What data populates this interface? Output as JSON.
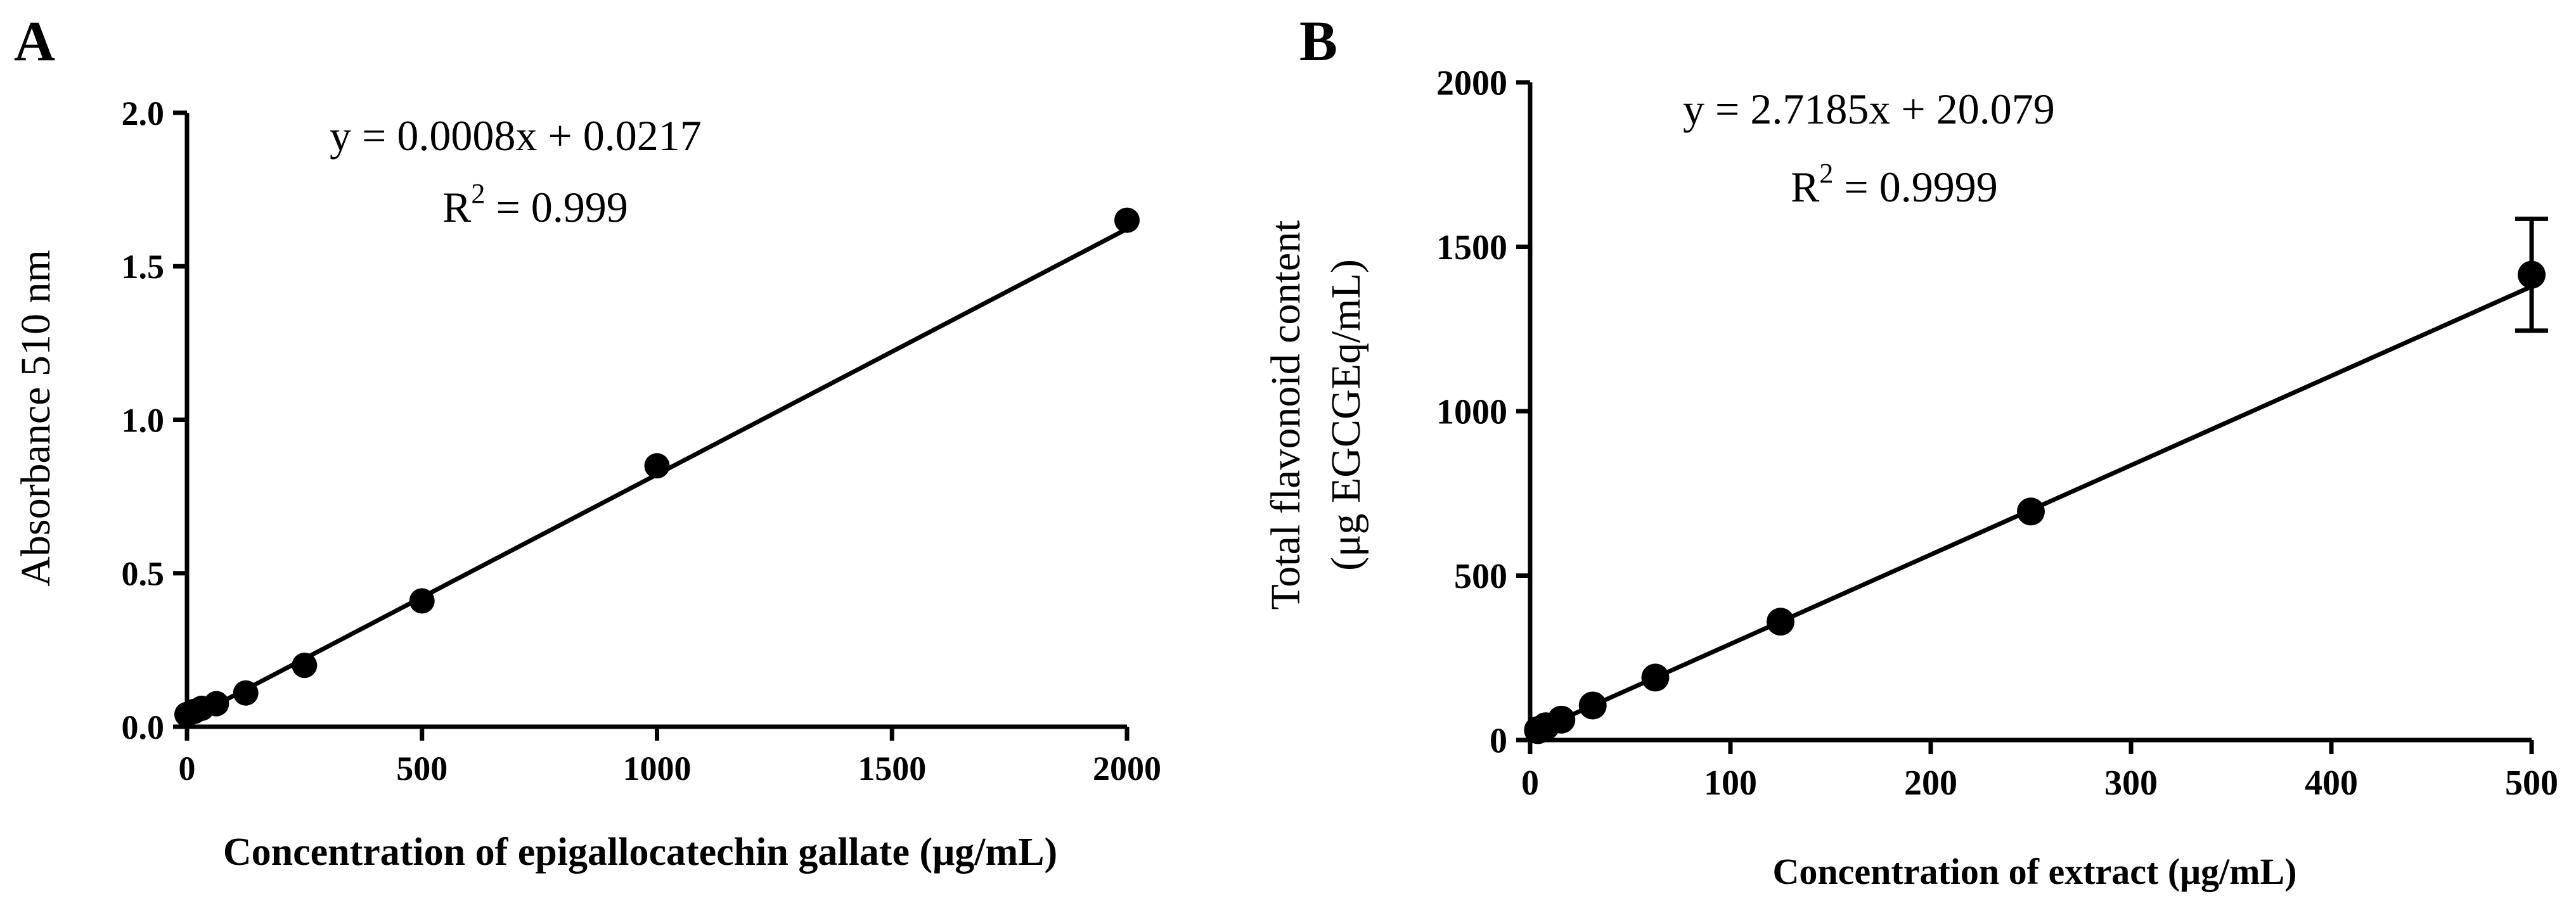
{
  "chart_data": [
    {
      "panel_label": "A",
      "type": "scatter",
      "fit_line": true,
      "xlabel": "Concentration of epigallocatechin gallate (μg/mL)",
      "ylabel": "Absorbance 510 nm",
      "xlim": [
        0,
        2000
      ],
      "ylim": [
        0,
        2.0
      ],
      "xticks": [
        0,
        500,
        1000,
        1500,
        2000
      ],
      "xtick_labels": [
        "0",
        "500",
        "1000",
        "1500",
        "2000"
      ],
      "yticks": [
        0,
        0.5,
        1.0,
        1.5,
        2.0
      ],
      "ytick_labels": [
        "0.0",
        "0.5",
        "1.0",
        "1.5",
        "2.0"
      ],
      "equation": "y = 0.0008x + 0.0217",
      "r2_label": "R",
      "r2_exp": "2",
      "r2_value": " = 0.999",
      "fit": {
        "slope": 0.0008,
        "intercept": 0.0217,
        "x_start": 0,
        "x_end": 2000
      },
      "grid": false,
      "x": [
        0,
        15.6,
        31.25,
        62.5,
        125,
        250,
        500,
        1000,
        2000
      ],
      "y": [
        0.04,
        0.05,
        0.06,
        0.075,
        0.11,
        0.2,
        0.41,
        0.85,
        1.65
      ],
      "err": [
        0,
        0,
        0,
        0,
        0,
        0,
        0,
        0,
        0
      ]
    },
    {
      "panel_label": "B",
      "type": "scatter",
      "fit_line": true,
      "xlabel": "Concentration of extract (μg/mL)",
      "ylabel_line1": "Total flavonoid content",
      "ylabel_line2": "(μg EGCGEq/mL)",
      "xlim": [
        0,
        500
      ],
      "ylim": [
        0,
        2000
      ],
      "xticks": [
        0,
        100,
        200,
        300,
        400,
        500
      ],
      "xtick_labels": [
        "0",
        "100",
        "200",
        "300",
        "400",
        "500"
      ],
      "yticks": [
        0,
        500,
        1000,
        1500,
        2000
      ],
      "ytick_labels": [
        "0",
        "500",
        "1000",
        "1500",
        "2000"
      ],
      "equation": "y = 2.7185x + 20.079",
      "r2_label": "R",
      "r2_exp": "2",
      "r2_value": " = 0.9999",
      "fit": {
        "slope": 2.7185,
        "intercept": 20.079,
        "x_start": 0,
        "x_end": 500
      },
      "grid": false,
      "x": [
        3.9,
        7.8,
        15.6,
        31.25,
        62.5,
        125,
        250,
        500
      ],
      "y": [
        30,
        42,
        62,
        105,
        190,
        360,
        695,
        1415
      ],
      "err": [
        0,
        0,
        0,
        0,
        0,
        0,
        0,
        170
      ]
    }
  ]
}
